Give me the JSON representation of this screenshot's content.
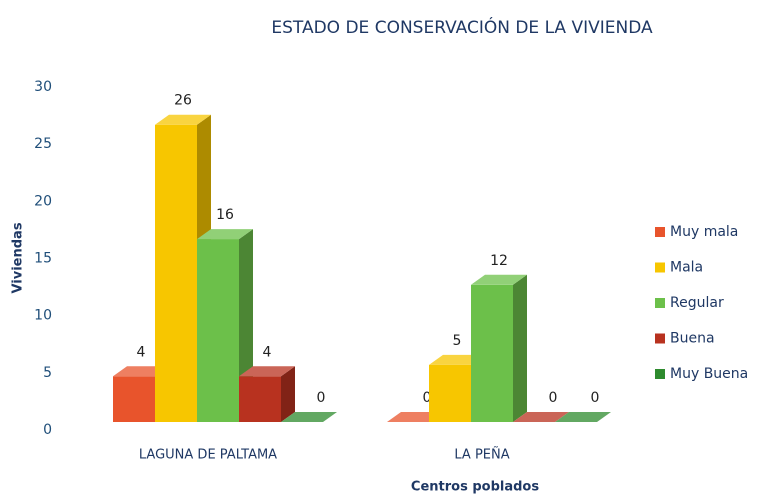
{
  "chart_data": {
    "type": "bar3d",
    "title": "ESTADO DE CONSERVACIÓN DE LA VIVIENDA",
    "y_label": "Viviendas",
    "x_label": "Centros poblados",
    "categories": [
      "LAGUNA DE PALTAMA",
      "LA PEÑA"
    ],
    "series": [
      {
        "name": "Muy mala",
        "color": "#e8542c",
        "values": [
          4,
          0
        ]
      },
      {
        "name": "Mala",
        "color": "#f7c600",
        "values": [
          26,
          5
        ]
      },
      {
        "name": "Regular",
        "color": "#6cc04a",
        "values": [
          16,
          12
        ]
      },
      {
        "name": "Buena",
        "color": "#b8321f",
        "values": [
          4,
          0
        ]
      },
      {
        "name": "Muy Buena",
        "color": "#2e8b2e",
        "values": [
          0,
          0
        ]
      }
    ],
    "ylim": [
      0,
      30
    ],
    "yticks": [
      0,
      5,
      10,
      15,
      20,
      25,
      30
    ],
    "grid": false,
    "legend": "right"
  }
}
